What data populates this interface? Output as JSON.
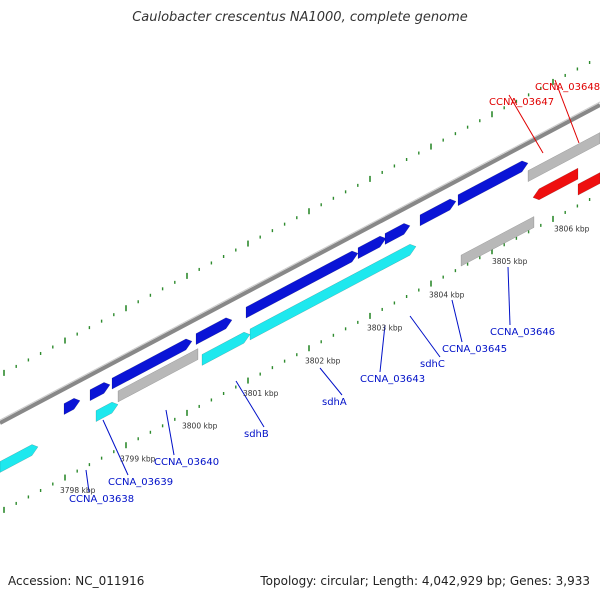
{
  "title": "Caulobacter crescentus NA1000, complete genome",
  "footer": {
    "accession": "Accession: NC_011916",
    "topology": "Topology: circular; Length: 4,042,929 bp; Genes: 3,933"
  },
  "colors": {
    "background": "#ffffff",
    "backbone": "#888888",
    "tick": "#2e8b2e",
    "gene_plus": "#0a14d6",
    "cds_plus": "#1ee8ee",
    "gene_minus": "#ee0f0f",
    "gene_other": "#b8b8b8",
    "label_plus": "#0010c8",
    "label_minus": "#e00000"
  },
  "kbp_labels": [
    "3798 kbp",
    "3799 kbp",
    "3800 kbp",
    "3801 kbp",
    "3802 kbp",
    "3803 kbp",
    "3804 kbp",
    "3805 kbp",
    "3806 kbp"
  ],
  "gene_labels": [
    {
      "text": "CCNA_03638",
      "strand": "plus"
    },
    {
      "text": "CCNA_03639",
      "strand": "plus"
    },
    {
      "text": "CCNA_03640",
      "strand": "plus"
    },
    {
      "text": "sdhB",
      "strand": "plus"
    },
    {
      "text": "sdhA",
      "strand": "plus"
    },
    {
      "text": "CCNA_03643",
      "strand": "plus"
    },
    {
      "text": "sdhC",
      "strand": "plus"
    },
    {
      "text": "CCNA_03645",
      "strand": "plus"
    },
    {
      "text": "CCNA_03646",
      "strand": "plus"
    },
    {
      "text": "CCNA_03647",
      "strand": "minus"
    },
    {
      "text": "CCNA_03648",
      "strand": "minus"
    }
  ]
}
